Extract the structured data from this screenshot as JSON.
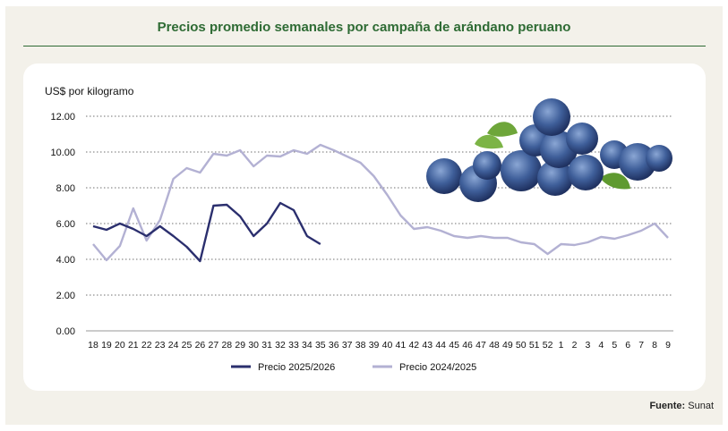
{
  "header": {
    "title": "Precios promedio semanales por campaña de arándano peruano"
  },
  "footer": {
    "source_label": "Fuente:",
    "source_value": "Sunat"
  },
  "colors": {
    "series_2025_2026": "#2b2f6e",
    "series_2024_2025": "#b3b1d3",
    "title": "#2e6b34"
  },
  "chart_data": {
    "type": "line",
    "title": "",
    "ylabel": "US$  por kilogramo",
    "xlabel": "",
    "ylim": [
      0,
      12
    ],
    "yticks": [
      "0.00",
      "2.00",
      "4.00",
      "6.00",
      "8.00",
      "10.00",
      "12.00"
    ],
    "grid": true,
    "legend_position": "bottom",
    "categories": [
      "18",
      "19",
      "20",
      "21",
      "22",
      "23",
      "24",
      "25",
      "26",
      "27",
      "28",
      "29",
      "30",
      "31",
      "32",
      "33",
      "34",
      "35",
      "36",
      "37",
      "38",
      "39",
      "40",
      "41",
      "42",
      "43",
      "44",
      "45",
      "46",
      "47",
      "48",
      "49",
      "50",
      "51",
      "52",
      "1",
      "2",
      "3",
      "4",
      "5",
      "6",
      "7",
      "8",
      "9"
    ],
    "series": [
      {
        "name": "Precio 2025/2026",
        "values": [
          5.85,
          5.65,
          6.0,
          5.7,
          5.3,
          5.85,
          5.3,
          4.7,
          3.9,
          7.0,
          7.05,
          6.4,
          5.3,
          6.0,
          7.15,
          6.75,
          5.3,
          4.85,
          null,
          null,
          null,
          null,
          null,
          null,
          null,
          null,
          null,
          null,
          null,
          null,
          null,
          null,
          null,
          null,
          null,
          null,
          null,
          null,
          null,
          null,
          null,
          null,
          null,
          null
        ]
      },
      {
        "name": "Precio 2024/2025",
        "values": [
          4.85,
          3.95,
          4.75,
          6.85,
          5.05,
          6.2,
          8.5,
          9.1,
          8.85,
          9.9,
          9.8,
          10.1,
          9.2,
          9.8,
          9.75,
          10.1,
          9.9,
          10.4,
          10.1,
          9.75,
          9.4,
          8.65,
          7.6,
          6.45,
          5.7,
          5.8,
          5.6,
          5.3,
          5.2,
          5.3,
          5.2,
          5.2,
          4.95,
          4.85,
          4.3,
          4.85,
          4.8,
          4.95,
          5.25,
          5.15,
          5.35,
          5.6,
          6.0,
          5.2
        ]
      }
    ]
  }
}
